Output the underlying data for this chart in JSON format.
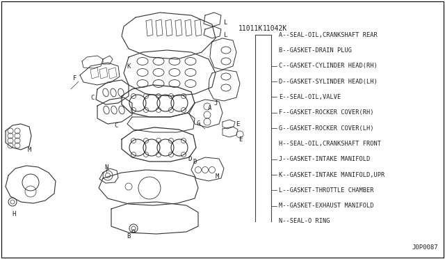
{
  "background_color": "#ffffff",
  "border_color": "#000000",
  "part_number_left": "11011K",
  "part_number_right": "11042K",
  "diagram_code": "J0P0087",
  "legend_items": [
    "A--SEAL-OIL,CRANKSHAFT REAR",
    "B--GASKET-DRAIN PLUG",
    "C--GASKET-CYLINDER HEAD(RH)",
    "D--GASKET-SYLINDER HEAD(LH)",
    "E--SEAL-OIL,VALVE",
    "F--GASKET-ROCKER COVER(RH)",
    "G--GASKET-ROCKER COVER(LH)",
    "H--SEAL-OIL,CRANKSHAFT FRONT",
    "J--GASKET-INTAKE MANIFOLD",
    "K--GASKET-INTAKE MANIFOLD,UPR",
    "L--GASKET-THROTTLE CHAMBER",
    "M--GASKET-EXHAUST MANIFOLD",
    "N--SEAL-O RING"
  ],
  "font_family": "monospace",
  "line_color": "#404040",
  "text_color": "#202020",
  "legend_font_size": 6.2,
  "pn_font_size": 7.0,
  "code_font_size": 6.5
}
